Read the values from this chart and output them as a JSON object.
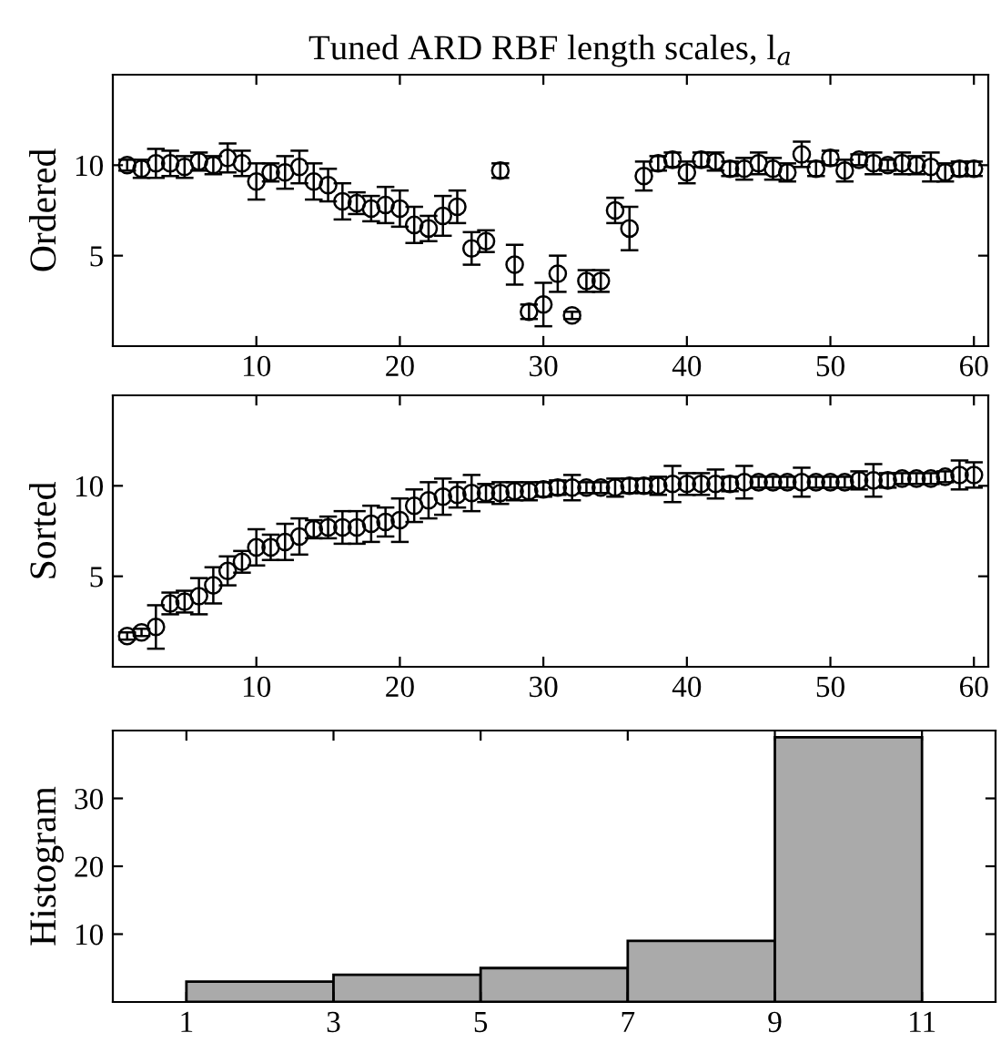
{
  "chart_data": [
    {
      "type": "scatter",
      "title": "Tuned ARD RBF length scales, l$_{a}$",
      "ylabel": "Ordered",
      "marker": "circle",
      "grid": false,
      "x": [
        1,
        2,
        3,
        4,
        5,
        6,
        7,
        8,
        9,
        10,
        11,
        12,
        13,
        14,
        15,
        16,
        17,
        18,
        19,
        20,
        21,
        22,
        23,
        24,
        25,
        26,
        27,
        28,
        29,
        30,
        31,
        32,
        33,
        34,
        35,
        36,
        37,
        38,
        39,
        40,
        41,
        42,
        43,
        44,
        45,
        46,
        47,
        48,
        49,
        50,
        51,
        52,
        53,
        54,
        55,
        56,
        57,
        58,
        59,
        60
      ],
      "values": [
        10.0,
        9.8,
        10.1,
        10.1,
        9.9,
        10.2,
        10.0,
        10.4,
        10.1,
        9.1,
        9.6,
        9.6,
        9.9,
        9.1,
        8.9,
        8.0,
        7.9,
        7.6,
        7.8,
        7.6,
        6.7,
        6.5,
        7.2,
        7.7,
        5.4,
        5.8,
        9.7,
        4.5,
        1.9,
        2.3,
        4.0,
        1.7,
        3.6,
        3.6,
        7.5,
        6.5,
        9.4,
        10.1,
        10.3,
        9.6,
        10.3,
        10.2,
        9.8,
        9.8,
        10.1,
        9.8,
        9.6,
        10.6,
        9.8,
        10.4,
        9.7,
        10.3,
        10.1,
        10.0,
        10.1,
        10.0,
        9.9,
        9.6,
        9.8,
        9.8
      ],
      "errors": [
        0.3,
        0.5,
        0.8,
        0.7,
        0.6,
        0.5,
        0.5,
        0.8,
        0.7,
        1.0,
        0.5,
        0.9,
        0.9,
        1.0,
        0.9,
        1.0,
        0.6,
        0.7,
        1.0,
        1.0,
        1.0,
        0.7,
        1.1,
        0.9,
        0.9,
        0.6,
        0.4,
        1.1,
        0.4,
        1.2,
        1.0,
        0.2,
        0.6,
        0.6,
        0.7,
        1.2,
        0.8,
        0.4,
        0.4,
        0.6,
        0.4,
        0.5,
        0.4,
        0.6,
        0.6,
        0.6,
        0.5,
        0.7,
        0.4,
        0.4,
        0.6,
        0.3,
        0.6,
        0.3,
        0.6,
        0.5,
        0.8,
        0.5,
        0.4,
        0.4
      ],
      "color": "#000000",
      "xlim": [
        0,
        61
      ],
      "ylim": [
        0,
        15
      ],
      "xticks": [
        10,
        20,
        30,
        40,
        50,
        60
      ],
      "yticks": [
        5,
        10
      ]
    },
    {
      "type": "scatter",
      "ylabel": "Sorted",
      "marker": "circle",
      "grid": false,
      "x": [
        1,
        2,
        3,
        4,
        5,
        6,
        7,
        8,
        9,
        10,
        11,
        12,
        13,
        14,
        15,
        16,
        17,
        18,
        19,
        20,
        21,
        22,
        23,
        24,
        25,
        26,
        27,
        28,
        29,
        30,
        31,
        32,
        33,
        34,
        35,
        36,
        37,
        38,
        39,
        40,
        41,
        42,
        43,
        44,
        45,
        46,
        47,
        48,
        49,
        50,
        51,
        52,
        53,
        54,
        55,
        56,
        57,
        58,
        59,
        60
      ],
      "values": [
        1.7,
        1.9,
        2.2,
        3.5,
        3.6,
        3.9,
        4.5,
        5.3,
        5.8,
        6.6,
        6.6,
        6.9,
        7.2,
        7.6,
        7.7,
        7.7,
        7.7,
        7.9,
        8.0,
        8.1,
        8.9,
        9.2,
        9.4,
        9.5,
        9.6,
        9.6,
        9.6,
        9.7,
        9.7,
        9.8,
        9.9,
        9.9,
        9.9,
        9.9,
        9.9,
        10.0,
        10.0,
        10.0,
        10.1,
        10.1,
        10.1,
        10.1,
        10.1,
        10.2,
        10.2,
        10.2,
        10.2,
        10.2,
        10.2,
        10.2,
        10.2,
        10.3,
        10.3,
        10.3,
        10.4,
        10.4,
        10.4,
        10.5,
        10.6,
        10.6
      ],
      "errors": [
        0.2,
        0.2,
        1.2,
        0.6,
        0.6,
        1.0,
        1.0,
        0.8,
        0.6,
        1.0,
        0.7,
        1.0,
        1.0,
        0.5,
        0.6,
        0.9,
        0.9,
        1.0,
        0.8,
        1.2,
        0.9,
        1.0,
        1.0,
        0.7,
        1.0,
        0.5,
        0.6,
        0.5,
        0.5,
        0.4,
        0.4,
        0.7,
        0.3,
        0.3,
        0.5,
        0.4,
        0.4,
        0.5,
        1.0,
        0.6,
        0.6,
        0.8,
        0.4,
        0.9,
        0.3,
        0.3,
        0.3,
        0.8,
        0.3,
        0.3,
        0.3,
        0.5,
        0.9,
        0.4,
        0.3,
        0.3,
        0.3,
        0.3,
        0.8,
        0.7
      ],
      "color": "#000000",
      "xlim": [
        0,
        61
      ],
      "ylim": [
        0,
        15
      ],
      "xticks": [
        10,
        20,
        30,
        40,
        50,
        60
      ],
      "yticks": [
        5,
        10
      ]
    },
    {
      "type": "histogram",
      "ylabel": "Histogram",
      "bins": [
        1,
        3,
        5,
        7,
        9,
        11
      ],
      "values": [
        3,
        4,
        5,
        9,
        39
      ],
      "color": "#aaaaaa",
      "grid": false,
      "xlim": [
        0,
        12
      ],
      "ylim": [
        0,
        40
      ],
      "xticks": [
        1,
        3,
        5,
        7,
        9,
        11
      ],
      "yticks": [
        10,
        20,
        30
      ]
    }
  ]
}
